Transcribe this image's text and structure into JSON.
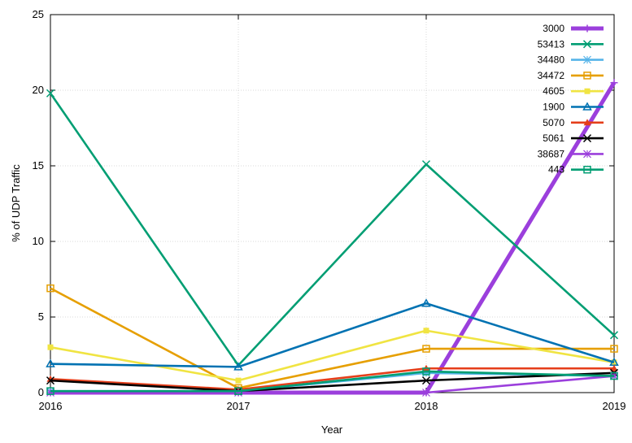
{
  "chart_data": {
    "type": "line",
    "xlabel": "Year",
    "ylabel": "% of UDP Traffic",
    "x": [
      2016,
      2017,
      2018,
      2019
    ],
    "xticks": [
      "2016",
      "2017",
      "2018",
      "2019"
    ],
    "ylim": [
      0,
      25
    ],
    "yticks": [
      "0",
      "5",
      "10",
      "15",
      "20",
      "25"
    ],
    "grid": true,
    "legend_position": "top-right",
    "series": [
      {
        "name": "3000",
        "color": "#9b3fdc",
        "marker": "plus",
        "bold": true,
        "values": [
          0,
          0,
          0,
          20.5
        ]
      },
      {
        "name": "53413",
        "color": "#009e73",
        "marker": "x",
        "bold": false,
        "values": [
          19.8,
          1.8,
          15.1,
          3.8
        ]
      },
      {
        "name": "34480",
        "color": "#56b4e9",
        "marker": "star",
        "bold": false,
        "values": [
          0.1,
          0.1,
          1.3,
          1.1
        ]
      },
      {
        "name": "34472",
        "color": "#e69f00",
        "marker": "square",
        "bold": false,
        "values": [
          6.9,
          0.3,
          2.9,
          2.9
        ]
      },
      {
        "name": "4605",
        "color": "#f0e442",
        "marker": "filled-square",
        "bold": false,
        "values": [
          3.0,
          0.8,
          4.1,
          2.0
        ]
      },
      {
        "name": "1900",
        "color": "#0072b2",
        "marker": "triangle",
        "bold": false,
        "values": [
          1.9,
          1.7,
          5.9,
          2.0
        ]
      },
      {
        "name": "5070",
        "color": "#e53e1a",
        "marker": "filled-triangle",
        "bold": false,
        "values": [
          0.9,
          0.2,
          1.6,
          1.6
        ]
      },
      {
        "name": "5061",
        "color": "#000000",
        "marker": "x",
        "bold": false,
        "values": [
          0.8,
          0.1,
          0.8,
          1.3
        ]
      },
      {
        "name": "38687",
        "color": "#9b3fdc",
        "marker": "star",
        "bold": false,
        "values": [
          0,
          0,
          0,
          1.1
        ]
      },
      {
        "name": "443",
        "color": "#009e73",
        "marker": "square",
        "bold": false,
        "values": [
          0.1,
          0.1,
          1.4,
          1.1
        ]
      }
    ]
  }
}
